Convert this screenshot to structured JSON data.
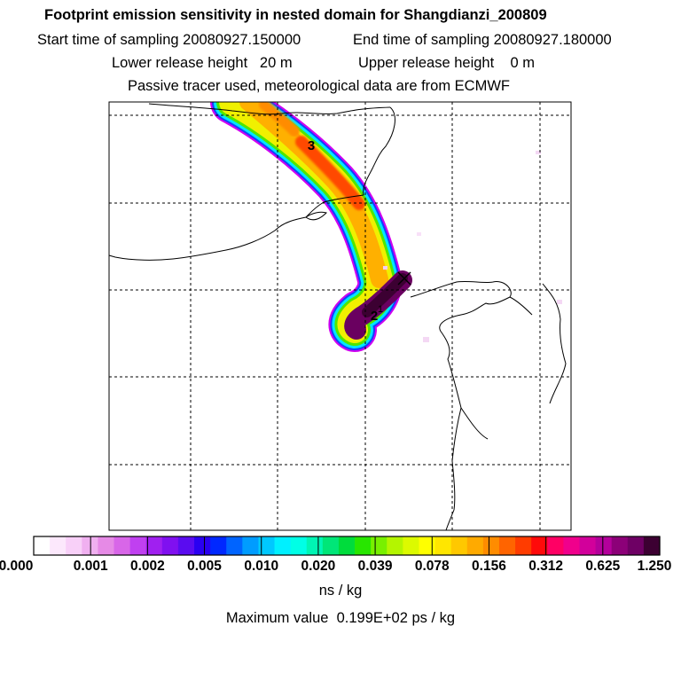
{
  "header": {
    "title": "Footprint emission sensitivity in nested domain for Shangdianzi_200809",
    "start_label": "Start time of sampling 20080927.150000",
    "end_label": "End time of sampling 20080927.180000",
    "lower_label": "Lower release height   20 m",
    "upper_label": "Upper release height    0 m",
    "tracer_note": "Passive tracer used, meteorological data are from ECMWF"
  },
  "map": {
    "day_labels": [
      "3",
      "2",
      "1"
    ],
    "station_marker": "x-marker-icon"
  },
  "chart_data": {
    "type": "heatmap",
    "title": "Footprint emission sensitivity in nested domain for Shangdianzi_200809",
    "colorbar": {
      "tick_labels": [
        "0.000",
        "0.001",
        "0.002",
        "0.005",
        "0.010",
        "0.020",
        "0.039",
        "0.078",
        "0.156",
        "0.312",
        "0.625",
        "1.250"
      ],
      "units": "ns / kg",
      "colors": [
        "#ffffff",
        "#fce8fc",
        "#f8d0f8",
        "#f0b0f0",
        "#e68ae6",
        "#d866e8",
        "#c040f0",
        "#a020f0",
        "#8010f0",
        "#5a0cf0",
        "#2a00f2",
        "#0028ff",
        "#0064ff",
        "#009cff",
        "#00c8ff",
        "#00f0ff",
        "#00ffe6",
        "#00f5b4",
        "#00e678",
        "#00dc3c",
        "#28e600",
        "#78f000",
        "#b4f500",
        "#dcfa00",
        "#ffff00",
        "#ffe600",
        "#ffc800",
        "#ffaa00",
        "#ff8c00",
        "#ff6400",
        "#ff3c00",
        "#ff0a0a",
        "#ff0064",
        "#f0008c",
        "#d2009b",
        "#b4009b",
        "#8c0078",
        "#6e0064",
        "#3c0032"
      ]
    },
    "maximum_value_label": "Maximum value",
    "maximum_value": "0.199E+02 ps / kg",
    "day_labels": [
      "3",
      "2",
      "1"
    ]
  }
}
